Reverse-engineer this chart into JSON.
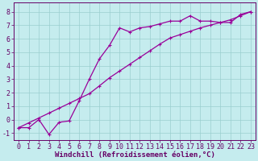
{
  "title": "",
  "xlabel": "Windchill (Refroidissement éolien,°C)",
  "ylabel": "",
  "bg_color": "#c5ecee",
  "grid_color": "#9acfcf",
  "line_color": "#990099",
  "spine_color": "#660066",
  "xlim": [
    -0.5,
    23.5
  ],
  "ylim": [
    -1.5,
    8.7
  ],
  "xticks": [
    0,
    1,
    2,
    3,
    4,
    5,
    6,
    7,
    8,
    9,
    10,
    11,
    12,
    13,
    14,
    15,
    16,
    17,
    18,
    19,
    20,
    21,
    22,
    23
  ],
  "yticks": [
    -1,
    0,
    1,
    2,
    3,
    4,
    5,
    6,
    7,
    8
  ],
  "line1_x": [
    0,
    1,
    2,
    3,
    4,
    5,
    6,
    7,
    8,
    9,
    10,
    11,
    12,
    13,
    14,
    15,
    16,
    17,
    18,
    19,
    20,
    21,
    22,
    23
  ],
  "line1_y": [
    -0.6,
    -0.6,
    0.0,
    -1.1,
    -0.2,
    -0.1,
    1.4,
    3.0,
    4.5,
    5.5,
    6.8,
    6.5,
    6.8,
    6.9,
    7.1,
    7.3,
    7.3,
    7.7,
    7.3,
    7.3,
    7.2,
    7.2,
    7.8,
    8.0
  ],
  "line2_x": [
    0,
    1,
    2,
    3,
    4,
    5,
    6,
    7,
    8,
    9,
    10,
    11,
    12,
    13,
    14,
    15,
    16,
    17,
    18,
    19,
    20,
    21,
    22,
    23
  ],
  "line2_y": [
    -0.6,
    -0.24,
    0.12,
    0.48,
    0.84,
    1.2,
    1.56,
    1.92,
    2.5,
    3.1,
    3.6,
    4.1,
    4.6,
    5.1,
    5.6,
    6.05,
    6.3,
    6.55,
    6.8,
    7.0,
    7.2,
    7.4,
    7.7,
    8.0
  ],
  "xlabel_fontsize": 6.5,
  "tick_fontsize": 6.0,
  "linewidth": 0.9,
  "markersize": 2.5,
  "marker": "+"
}
